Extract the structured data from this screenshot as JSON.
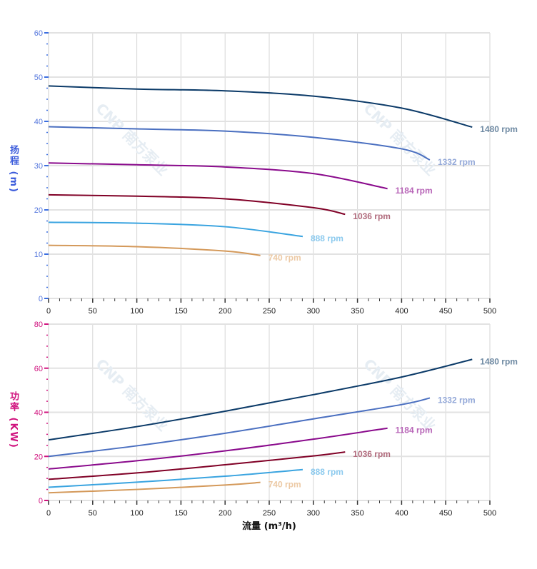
{
  "chart_data": [
    {
      "type": "line",
      "ylabel": "扬程 (m)",
      "ylabel_color": "#3b5bdb",
      "xlim": [
        0,
        500
      ],
      "ylim": [
        0,
        60
      ],
      "xticks": [
        0,
        50,
        100,
        150,
        200,
        250,
        300,
        350,
        400,
        450,
        500
      ],
      "yticks": [
        0,
        10,
        20,
        30,
        40,
        50,
        60
      ],
      "grid": true,
      "watermark": "CNP 南方泵业",
      "series": [
        {
          "name": "1480 rpm",
          "color": "#0b3a68",
          "label_color": "#6f8aa3",
          "x": [
            0,
            100,
            200,
            300,
            400,
            480
          ],
          "y": [
            48,
            47.3,
            46.9,
            45.7,
            43,
            38.7
          ]
        },
        {
          "name": "1332 rpm",
          "color": "#4a6fc0",
          "label_color": "#93a8d8",
          "x": [
            0,
            100,
            200,
            300,
            400,
            432
          ],
          "y": [
            38.8,
            38.3,
            37.8,
            36.4,
            33.8,
            31.3
          ]
        },
        {
          "name": "1184 rpm",
          "color": "#8a0a8c",
          "label_color": "#b866b8",
          "x": [
            0,
            100,
            200,
            300,
            384
          ],
          "y": [
            30.6,
            30.2,
            29.7,
            28.2,
            24.8
          ]
        },
        {
          "name": "1036 rpm",
          "color": "#800026",
          "label_color": "#b06a7c",
          "x": [
            0,
            100,
            200,
            300,
            336
          ],
          "y": [
            23.4,
            23.1,
            22.5,
            20.5,
            19
          ]
        },
        {
          "name": "888 rpm",
          "color": "#3aa4e0",
          "label_color": "#8ccaee",
          "x": [
            0,
            100,
            200,
            288
          ],
          "y": [
            17.2,
            17,
            16.2,
            14
          ]
        },
        {
          "name": "740 rpm",
          "color": "#d4995a",
          "label_color": "#ecc9a4",
          "x": [
            0,
            100,
            200,
            240
          ],
          "y": [
            12,
            11.7,
            10.7,
            9.7
          ]
        }
      ]
    },
    {
      "type": "line",
      "ylabel": "功率 (KW)",
      "ylabel_color": "#d0127e",
      "xlabel": "流量 (m³/h)",
      "xlim": [
        0,
        500
      ],
      "ylim": [
        0,
        80
      ],
      "xticks": [
        0,
        50,
        100,
        150,
        200,
        250,
        300,
        350,
        400,
        450,
        500
      ],
      "yticks": [
        0,
        20,
        40,
        60,
        80
      ],
      "grid": true,
      "watermark": "CNP 南方泵业",
      "series": [
        {
          "name": "1480 rpm",
          "color": "#0b3a68",
          "label_color": "#6f8aa3",
          "x": [
            0,
            100,
            200,
            300,
            400,
            480
          ],
          "y": [
            27.5,
            33.5,
            40.5,
            48,
            56,
            64
          ]
        },
        {
          "name": "1332 rpm",
          "color": "#4a6fc0",
          "label_color": "#93a8d8",
          "x": [
            0,
            100,
            200,
            300,
            400,
            432
          ],
          "y": [
            20,
            24.8,
            30.5,
            37,
            43.5,
            46.5
          ]
        },
        {
          "name": "1184 rpm",
          "color": "#8a0a8c",
          "label_color": "#b866b8",
          "x": [
            0,
            100,
            200,
            300,
            384
          ],
          "y": [
            14.3,
            18,
            22.5,
            27.8,
            32.8
          ]
        },
        {
          "name": "1036 rpm",
          "color": "#800026",
          "label_color": "#b06a7c",
          "x": [
            0,
            100,
            200,
            300,
            336
          ],
          "y": [
            9.6,
            12.5,
            16.2,
            20.2,
            22
          ]
        },
        {
          "name": "888 rpm",
          "color": "#3aa4e0",
          "label_color": "#8ccaee",
          "x": [
            0,
            100,
            200,
            288
          ],
          "y": [
            6,
            8.3,
            11,
            14
          ]
        },
        {
          "name": "740 rpm",
          "color": "#d4995a",
          "label_color": "#ecc9a4",
          "x": [
            0,
            100,
            200,
            240
          ],
          "y": [
            3.5,
            5,
            7,
            8.2
          ]
        }
      ]
    }
  ]
}
